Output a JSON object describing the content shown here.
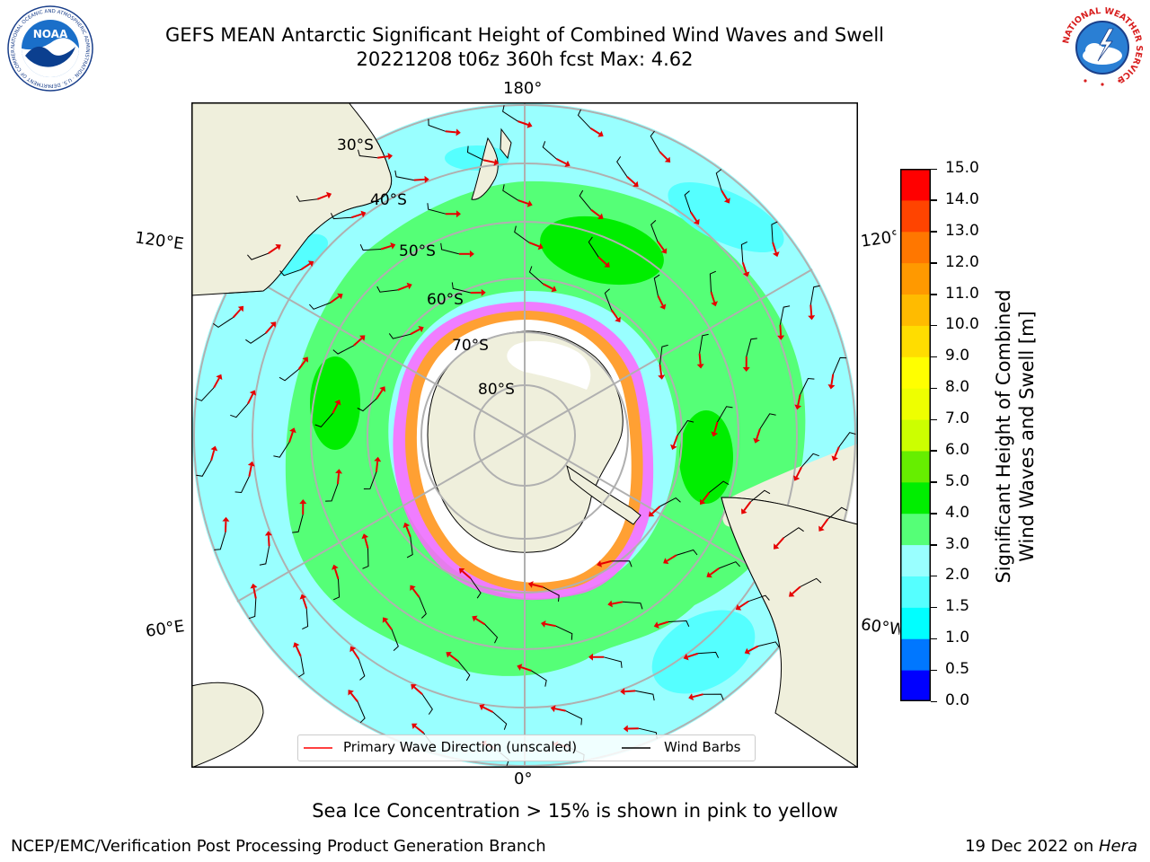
{
  "header": {
    "title_line1": "GEFS MEAN Antarctic Significant Height of Combined Wind Waves and Swell",
    "title_line2": "20221208 t06z 360h fcst   Max: 4.62",
    "left_logo": {
      "name": "noaa-logo",
      "text": "NOAA",
      "ring_text": "NATIONAL OCEANIC AND ATMOSPHERIC ADMINISTRATION · U.S. DEPARTMENT OF COMMERCE"
    },
    "right_logo": {
      "name": "nws-logo",
      "ring_text": "NATIONAL WEATHER SERVICE"
    }
  },
  "map": {
    "projection": "south-polar-stereographic",
    "longitude_labels": {
      "top": "180°",
      "bottom": "0°",
      "upper_left": "120°E",
      "lower_left": "60°E",
      "upper_right": "120°W",
      "lower_right": "60°W"
    },
    "latitude_labels": [
      "30°S",
      "40°S",
      "50°S",
      "60°S",
      "70°S",
      "80°S"
    ],
    "colors": {
      "land": "#efefdc",
      "ice": "#ffffff",
      "wave_1_5_2": "#55ffff",
      "wave_2_3": "#99ffff",
      "wave_3_4": "#55ff77",
      "wave_4_5": "#00ee00",
      "grid": "#b0b0b0",
      "arrow": "#ff1a1a",
      "barb": "#000000",
      "ice_edge": "#ff44ff",
      "ice_edge_warm": "#ffa033"
    }
  },
  "legend": {
    "items": [
      {
        "label": "Primary Wave Direction (unscaled)",
        "color": "#ff0000"
      },
      {
        "label": "Wind Barbs",
        "color": "#000000"
      }
    ]
  },
  "colorbar": {
    "title_line1": "Significant Height of Combined",
    "title_line2": "Wind Waves and Swell [m]",
    "ticks": [
      "0.0",
      "0.5",
      "1.0",
      "1.5",
      "2.0",
      "3.0",
      "4.0",
      "5.0",
      "6.0",
      "7.0",
      "8.0",
      "9.0",
      "10.0",
      "11.0",
      "12.0",
      "13.0",
      "14.0",
      "15.0"
    ],
    "colors": [
      "#0000ff",
      "#0077ff",
      "#00ffff",
      "#55ffff",
      "#99ffff",
      "#55ff77",
      "#00ee00",
      "#66ee00",
      "#ccff00",
      "#eeff00",
      "#ffff00",
      "#ffdd00",
      "#ffbb00",
      "#ff9900",
      "#ff7700",
      "#ff4400",
      "#ff0000"
    ]
  },
  "footer": {
    "note": "Sea Ice Concentration > 15% is shown in pink to yellow",
    "credit_left": "NCEP/EMC/Verification Post Processing Product Generation Branch",
    "credit_right_date": "19 Dec 2022 on ",
    "credit_right_machine": "Hera"
  }
}
